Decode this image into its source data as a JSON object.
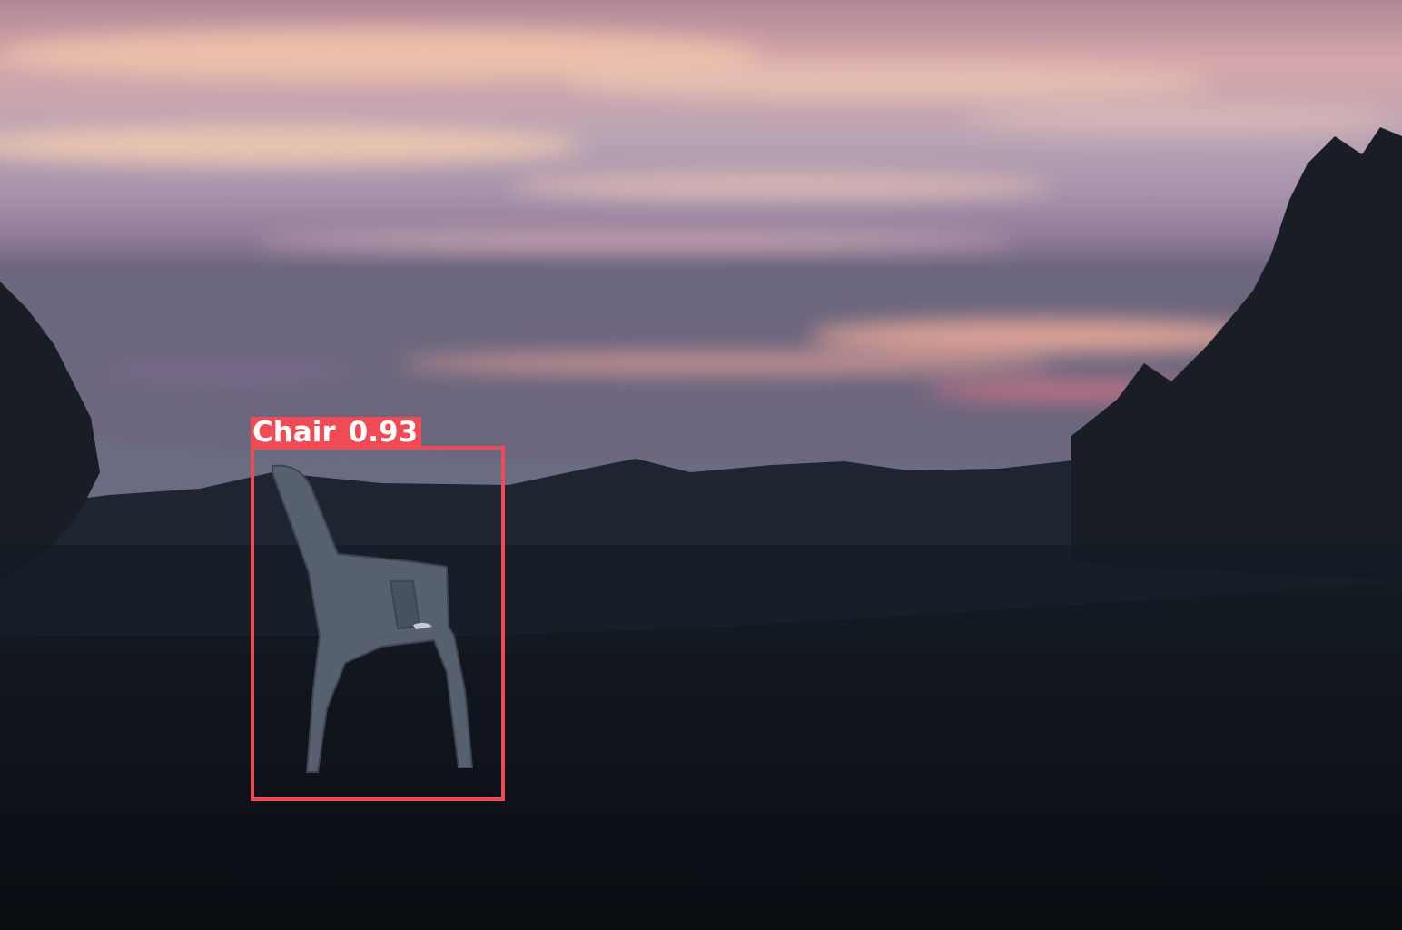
{
  "scene": {
    "description_colors": {
      "sky_top": "#b7879a",
      "sky_mid": "#cfa2a8",
      "sky_horizon": "#7e6e8c",
      "cloud_glow": "#f2b8a2",
      "hills": "#3a4356",
      "ground": "#0d1117"
    }
  },
  "detections": [
    {
      "class_label": "Chair",
      "confidence": "0.93",
      "color": "#f04a55"
    }
  ]
}
